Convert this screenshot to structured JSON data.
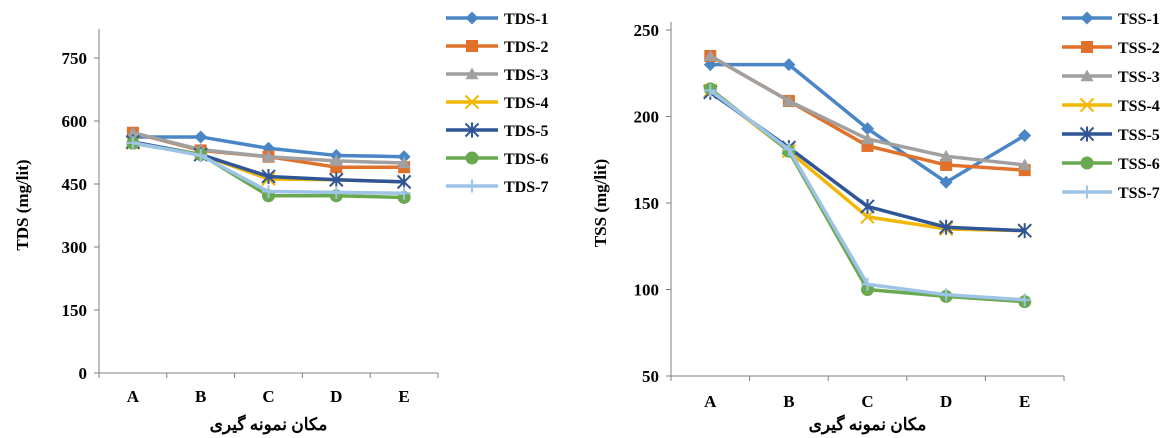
{
  "chart_data": [
    {
      "type": "line",
      "categories": [
        "A",
        "B",
        "C",
        "D",
        "E"
      ],
      "xlabel": "مکان نمونه گیری",
      "ylabel": "TDS (mg/lit)",
      "ylim": [
        0,
        800
      ],
      "yticks": [
        "0",
        "150",
        "300",
        "450",
        "600",
        "750"
      ],
      "grid": false,
      "legend_position": "right",
      "series": [
        {
          "name": "TDS-1",
          "color": "#4A86C5",
          "marker": "diamond",
          "values": [
            562,
            562,
            535,
            518,
            515
          ]
        },
        {
          "name": "TDS-2",
          "color": "#E0702A",
          "marker": "square",
          "values": [
            572,
            530,
            515,
            490,
            490
          ]
        },
        {
          "name": "TDS-3",
          "color": "#A0A0A0",
          "marker": "triangle",
          "values": [
            572,
            532,
            515,
            505,
            500
          ]
        },
        {
          "name": "TDS-4",
          "color": "#F2B705",
          "marker": "x",
          "values": [
            548,
            520,
            462,
            460,
            455
          ]
        },
        {
          "name": "TDS-5",
          "color": "#2F5597",
          "marker": "star",
          "values": [
            550,
            520,
            468,
            460,
            455
          ]
        },
        {
          "name": "TDS-6",
          "color": "#6AA84F",
          "marker": "circle",
          "values": [
            547,
            520,
            422,
            422,
            418
          ]
        },
        {
          "name": "TDS-7",
          "color": "#9DC3E6",
          "marker": "plus",
          "values": [
            548,
            518,
            432,
            430,
            428
          ]
        }
      ]
    },
    {
      "type": "line",
      "categories": [
        "A",
        "B",
        "C",
        "D",
        "E"
      ],
      "xlabel": "مکان نمونه گیری",
      "ylabel": "TSS (mg/lit)",
      "ylim": [
        50,
        250
      ],
      "yticks": [
        "50",
        "100",
        "150",
        "200",
        "250"
      ],
      "grid": false,
      "legend_position": "right",
      "series": [
        {
          "name": "TSS-1",
          "color": "#4A86C5",
          "marker": "diamond",
          "values": [
            230,
            230,
            193,
            162,
            189
          ]
        },
        {
          "name": "TSS-2",
          "color": "#E0702A",
          "marker": "square",
          "values": [
            235,
            209,
            183,
            172,
            169
          ]
        },
        {
          "name": "TSS-3",
          "color": "#A0A0A0",
          "marker": "triangle",
          "values": [
            235,
            209,
            187,
            177,
            172
          ]
        },
        {
          "name": "TSS-4",
          "color": "#F2B705",
          "marker": "x",
          "values": [
            215,
            180,
            142,
            135,
            134
          ]
        },
        {
          "name": "TSS-5",
          "color": "#2F5597",
          "marker": "star",
          "values": [
            214,
            182,
            148,
            136,
            134
          ]
        },
        {
          "name": "TSS-6",
          "color": "#6AA84F",
          "marker": "circle",
          "values": [
            216,
            180,
            100,
            96,
            93
          ]
        },
        {
          "name": "TSS-7",
          "color": "#9DC3E6",
          "marker": "plus",
          "values": [
            215,
            181,
            103,
            97,
            94
          ]
        }
      ]
    }
  ]
}
